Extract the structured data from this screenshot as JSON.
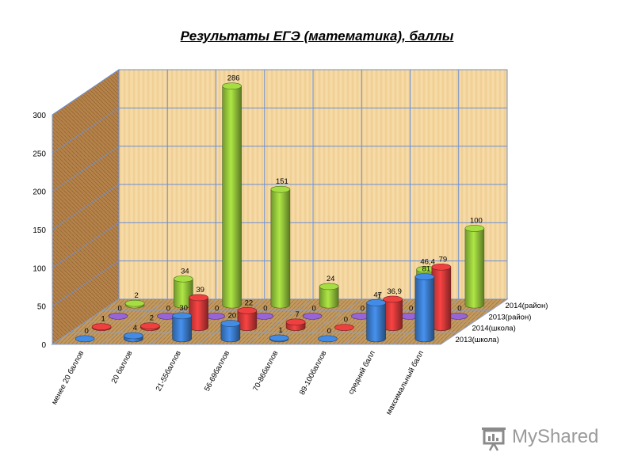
{
  "chart_data": {
    "type": "bar",
    "title": "Результаты ЕГЭ (математика), баллы",
    "categories": [
      "менее 20 баллов",
      "20 баллов",
      "21-55баллов",
      "56-69баллов",
      "70-86баллов",
      "89-100баллов",
      "средний балл",
      "максимальный балл"
    ],
    "series": [
      {
        "name": "2013(школа)",
        "color": "#3d7fd1",
        "values": [
          0,
          4,
          30,
          20,
          1,
          0,
          47,
          81
        ]
      },
      {
        "name": "2014(школа)",
        "color": "#d93a3a",
        "values": [
          1,
          2,
          39,
          22,
          7,
          0,
          36.9,
          79
        ]
      },
      {
        "name": "2013(район)",
        "color": "#8a5cc2",
        "values": [
          0,
          0,
          0,
          0,
          0,
          0,
          0,
          0
        ]
      },
      {
        "name": "2014(район)",
        "color": "#97c93c",
        "values": [
          2,
          34,
          286,
          151,
          24,
          1,
          46.4,
          100
        ]
      }
    ],
    "labels": [
      [
        "0",
        "4",
        "30",
        "20",
        "1",
        "0",
        "47",
        "81"
      ],
      [
        "1",
        "2",
        "39",
        "22",
        "7",
        "0",
        "36,9",
        "79"
      ],
      [
        "0",
        "0",
        "0",
        "0",
        "0",
        "0",
        "0",
        "0"
      ],
      [
        "2",
        "34",
        "286",
        "151",
        "24",
        "1",
        "46,4",
        "100"
      ]
    ],
    "legend_order": [
      "2014(район)",
      "2013(район)",
      "2014(школа)",
      "2013(школа)"
    ],
    "y_ticks": [
      0,
      50,
      100,
      150,
      200,
      250,
      300
    ],
    "ylim": [
      0,
      300
    ],
    "grid": true
  },
  "watermark": {
    "text": "MyShared"
  }
}
